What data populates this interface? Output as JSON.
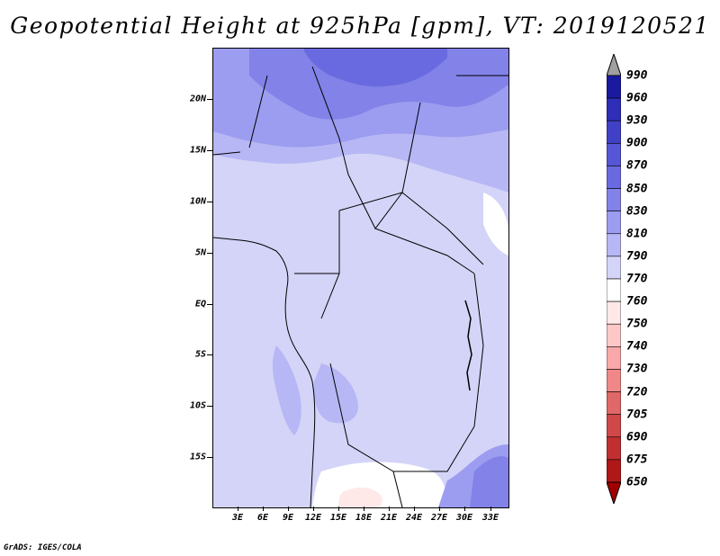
{
  "title": "Geopotential Height at 925hPa [gpm], VT: 2019120521",
  "footer": "GrADS: IGES/COLA",
  "map": {
    "region": "Central Africa",
    "lat_labels": [
      "20N",
      "15N",
      "10N",
      "5N",
      "EQ",
      "5S",
      "10S",
      "15S"
    ],
    "lon_labels": [
      "3E",
      "6E",
      "9E",
      "12E",
      "15E",
      "18E",
      "21E",
      "24E",
      "27E",
      "30E",
      "33E"
    ]
  },
  "colorbar": {
    "labels": [
      "990",
      "960",
      "930",
      "900",
      "870",
      "850",
      "830",
      "810",
      "790",
      "770",
      "760",
      "750",
      "740",
      "730",
      "720",
      "705",
      "690",
      "675",
      "650"
    ],
    "colors": [
      "#00008b",
      "#1a1aa0",
      "#2e2eb8",
      "#4141c8",
      "#5656d6",
      "#6a6ae0",
      "#8282e8",
      "#9c9cf0",
      "#b7b7f5",
      "#d4d4f8",
      "#ffffff",
      "#ffe8e8",
      "#ffc8c8",
      "#f8a8a8",
      "#f08888",
      "#e06868",
      "#d04848",
      "#c03030",
      "#b01818",
      "#a00000"
    ],
    "top_arrow_color": "#a0a0a0",
    "bottom_arrow_color": "#a00000"
  }
}
